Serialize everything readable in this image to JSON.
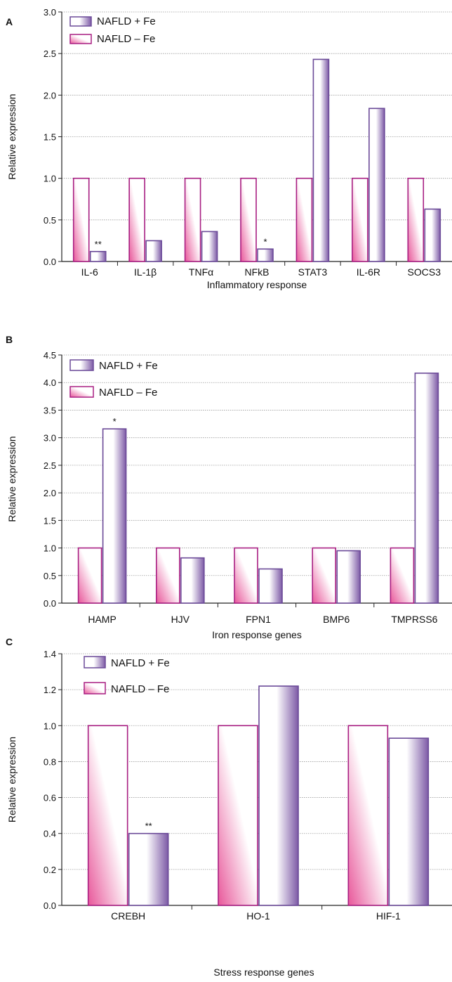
{
  "figure": {
    "bar_colors": {
      "with_fe_light": "#ffffff",
      "with_fe_dark": "#7d5aa6",
      "with_fe_stroke": "#6b4a98",
      "without_fe_light": "#ffffff",
      "without_fe_dark": "#e8579a",
      "without_fe_stroke": "#a81e82",
      "grid": "#9a9a9a",
      "axis": "#222222"
    }
  },
  "chart_data": [
    {
      "panel": "A",
      "type": "bar",
      "ylabel": "Relative expression",
      "xlabel": "Inflammatory response",
      "ylim": [
        0,
        3.0
      ],
      "yticks": [
        "0.0",
        "0.5",
        "1.0",
        "1.5",
        "2.0",
        "2.5",
        "3.0"
      ],
      "grid": true,
      "legend_position": "top-left",
      "categories": [
        "IL-6",
        "IL-1β",
        "TNFα",
        "NFkB",
        "STAT3",
        "IL-6R",
        "SOCS3"
      ],
      "series": [
        {
          "name": "NAFLD + Fe",
          "values": [
            0.12,
            0.25,
            0.36,
            0.15,
            2.43,
            1.84,
            0.63
          ]
        },
        {
          "name": "NAFLD – Fe",
          "values": [
            1.0,
            1.0,
            1.0,
            1.0,
            1.0,
            1.0,
            1.0
          ]
        }
      ],
      "annotations": [
        "**",
        "",
        "",
        "*",
        "",
        "",
        ""
      ]
    },
    {
      "panel": "B",
      "type": "bar",
      "ylabel": "Relative expression",
      "xlabel": "Iron response genes",
      "ylim": [
        0,
        4.5
      ],
      "yticks": [
        "0.0",
        "0.5",
        "1.0",
        "1.5",
        "2.0",
        "2.5",
        "3.0",
        "3.5",
        "4.0",
        "4.5"
      ],
      "grid": true,
      "legend_position": "top-left",
      "categories": [
        "HAMP",
        "HJV",
        "FPN1",
        "BMP6",
        "TMPRSS6"
      ],
      "series": [
        {
          "name": "NAFLD + Fe",
          "values": [
            3.16,
            0.82,
            0.62,
            0.95,
            4.17
          ]
        },
        {
          "name": "NAFLD – Fe",
          "values": [
            1.0,
            1.0,
            1.0,
            1.0,
            1.0
          ]
        }
      ],
      "annotations": [
        "*",
        "",
        "",
        "",
        ""
      ]
    },
    {
      "panel": "C",
      "type": "bar",
      "ylabel": "Relative expression",
      "xlabel": "Stress response genes",
      "ylim": [
        0,
        1.4
      ],
      "yticks": [
        "0.0",
        "0.2",
        "0.4",
        "0.6",
        "0.8",
        "1.0",
        "1.2",
        "1.4"
      ],
      "grid": true,
      "legend_position": "top-left",
      "categories": [
        "CREBH",
        "HO-1",
        "HIF-1"
      ],
      "series": [
        {
          "name": "NAFLD + Fe",
          "values": [
            0.4,
            1.22,
            0.93
          ]
        },
        {
          "name": "NAFLD – Fe",
          "values": [
            1.0,
            1.0,
            1.0
          ]
        }
      ],
      "annotations": [
        "**",
        "",
        ""
      ]
    }
  ]
}
